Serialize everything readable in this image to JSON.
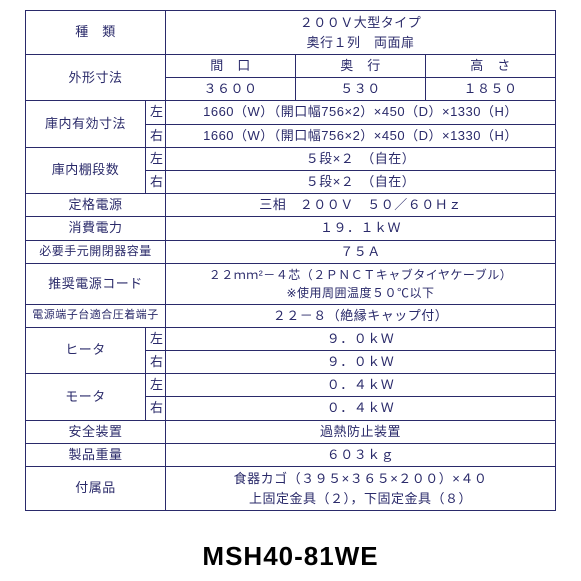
{
  "colors": {
    "text": "#2a2a6a",
    "border": "#2a2a6a",
    "background": "#ffffff",
    "model_text": "#000000"
  },
  "fonts": {
    "table_size": 13,
    "model_size": 26
  },
  "rows": {
    "type_label": "種　類",
    "type_value_l1": "２００Ｖ大型タイプ",
    "type_value_l2": "奥行１列　両面扉",
    "ext_dim_label": "外形寸法",
    "ext_dim_h1": "間　口",
    "ext_dim_h2": "奥　行",
    "ext_dim_h3": "高　さ",
    "ext_dim_v1": "３６００",
    "ext_dim_v2": "５３０",
    "ext_dim_v3": "１８５０",
    "int_dim_label": "庫内有効寸法",
    "left": "左",
    "right": "右",
    "int_dim_left": "1660（W）（開口幅756×2）×450（D）×1330（H）",
    "int_dim_right": "1660（W）（開口幅756×2）×450（D）×1330（H）",
    "shelves_label": "庫内棚段数",
    "shelves_left": "５段×２　（自在）",
    "shelves_right": "５段×２　（自在）",
    "power_rating_label": "定格電源",
    "power_rating_value": "三相　２００Ｖ　５０／６０Ｈｚ",
    "power_consumption_label": "消費電力",
    "power_consumption_value": "１９．１ｋＷ",
    "breaker_label": "必要手元開閉器容量",
    "breaker_value": "７５Ａ",
    "cord_label": "推奨電源コード",
    "cord_value_l1": "２２ｍｍ²－４芯（２ＰＮＣＴキャブタイヤケーブル）",
    "cord_value_l2": "※使用周囲温度５０℃以下",
    "terminal_label": "電源端子台適合圧着端子",
    "terminal_value": "２２－８（絶縁キャップ付）",
    "heater_label": "ヒータ",
    "heater_left": "９．０ｋＷ",
    "heater_right": "９．０ｋＷ",
    "motor_label": "モータ",
    "motor_left": "０．４ｋＷ",
    "motor_right": "０．４ｋＷ",
    "safety_label": "安全装置",
    "safety_value": "過熱防止装置",
    "weight_label": "製品重量",
    "weight_value": "６０３ｋｇ",
    "accessories_label": "付属品",
    "accessories_value_l1": "食器カゴ（３９５×３６５×２００）×４０",
    "accessories_value_l2": "上固定金具（２），下固定金具（８）"
  },
  "model": "MSH40-81WE"
}
